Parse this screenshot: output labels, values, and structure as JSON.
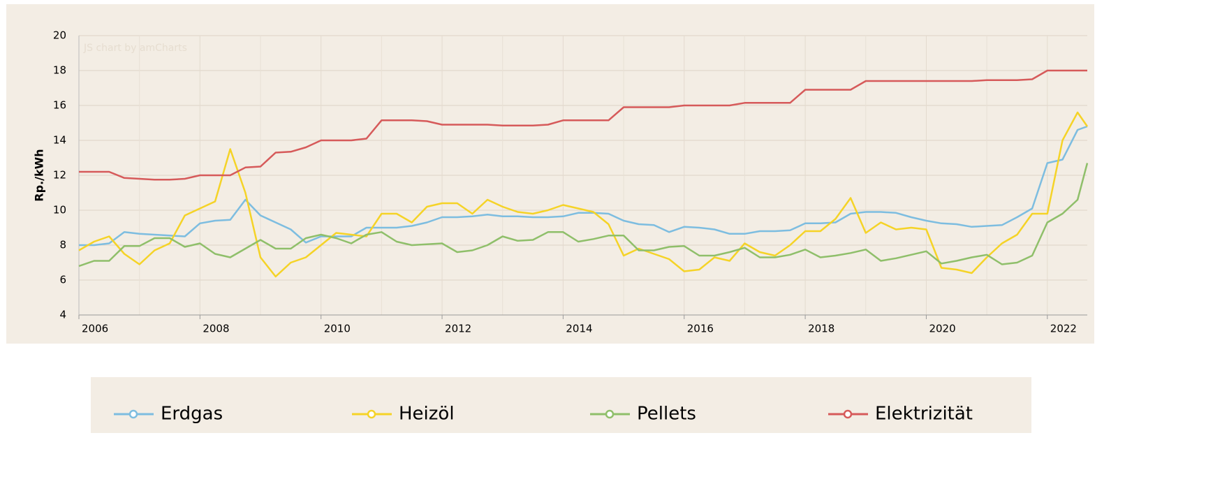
{
  "chart_data": {
    "type": "line",
    "watermark": "JS chart by amCharts",
    "y_label": "Rp./kWh",
    "x": [
      2006,
      2006.25,
      2006.5,
      2006.75,
      2007,
      2007.25,
      2007.5,
      2007.75,
      2008,
      2008.25,
      2008.5,
      2008.75,
      2009,
      2009.25,
      2009.5,
      2009.75,
      2010,
      2010.25,
      2010.5,
      2010.75,
      2011,
      2011.25,
      2011.5,
      2011.75,
      2012,
      2012.25,
      2012.5,
      2012.75,
      2013,
      2013.25,
      2013.5,
      2013.75,
      2014,
      2014.25,
      2014.5,
      2014.75,
      2015,
      2015.25,
      2015.5,
      2015.75,
      2016,
      2016.25,
      2016.5,
      2016.75,
      2017,
      2017.25,
      2017.5,
      2017.75,
      2018,
      2018.25,
      2018.5,
      2018.75,
      2019,
      2019.25,
      2019.5,
      2019.75,
      2020,
      2020.25,
      2020.5,
      2020.75,
      2021,
      2021.25,
      2021.5,
      2021.75,
      2022,
      2022.25,
      2022.5,
      2022.66
    ],
    "series": [
      {
        "name": "Erdgas",
        "color": "#7dbde0",
        "values": [
          8.0,
          8.0,
          8.1,
          8.75,
          8.65,
          8.6,
          8.55,
          8.5,
          9.25,
          9.4,
          9.45,
          10.6,
          9.7,
          9.3,
          8.9,
          8.15,
          8.5,
          8.5,
          8.5,
          9.0,
          9.0,
          9.0,
          9.1,
          9.3,
          9.6,
          9.6,
          9.65,
          9.75,
          9.65,
          9.65,
          9.6,
          9.6,
          9.65,
          9.85,
          9.85,
          9.8,
          9.4,
          9.2,
          9.15,
          8.75,
          9.05,
          9.0,
          8.9,
          8.65,
          8.65,
          8.8,
          8.8,
          8.85,
          9.25,
          9.25,
          9.3,
          9.8,
          9.9,
          9.9,
          9.85,
          9.6,
          9.4,
          9.25,
          9.2,
          9.05,
          9.1,
          9.15,
          9.6,
          10.1,
          12.7,
          12.9,
          14.6,
          14.8
        ]
      },
      {
        "name": "Heizöl",
        "color": "#f5d327",
        "values": [
          7.7,
          8.2,
          8.5,
          7.5,
          6.9,
          7.7,
          8.1,
          9.7,
          10.1,
          10.5,
          13.5,
          11.0,
          7.3,
          6.2,
          7.0,
          7.3,
          8.0,
          8.7,
          8.6,
          8.5,
          9.8,
          9.8,
          9.3,
          10.2,
          10.4,
          10.4,
          9.8,
          10.6,
          10.2,
          9.9,
          9.8,
          10.0,
          10.3,
          10.1,
          9.9,
          9.2,
          7.4,
          7.8,
          7.5,
          7.2,
          6.5,
          6.6,
          7.3,
          7.1,
          8.1,
          7.6,
          7.4,
          8.0,
          8.8,
          8.8,
          9.5,
          10.7,
          8.7,
          9.3,
          8.9,
          9.0,
          8.9,
          6.7,
          6.6,
          6.4,
          7.3,
          8.1,
          8.6,
          9.8,
          9.8,
          14.0,
          15.6,
          14.8
        ]
      },
      {
        "name": "Pellets",
        "color": "#8fbf6a",
        "values": [
          6.8,
          7.1,
          7.1,
          7.95,
          7.95,
          8.4,
          8.4,
          7.9,
          8.1,
          7.5,
          7.3,
          7.8,
          8.3,
          7.8,
          7.8,
          8.4,
          8.6,
          8.4,
          8.1,
          8.6,
          8.75,
          8.2,
          8.0,
          8.05,
          8.1,
          7.6,
          7.7,
          8.0,
          8.5,
          8.25,
          8.3,
          8.75,
          8.75,
          8.2,
          8.35,
          8.55,
          8.55,
          7.7,
          7.7,
          7.9,
          7.95,
          7.4,
          7.4,
          7.6,
          7.85,
          7.3,
          7.3,
          7.45,
          7.75,
          7.3,
          7.4,
          7.55,
          7.75,
          7.1,
          7.25,
          7.45,
          7.65,
          6.95,
          7.1,
          7.3,
          7.45,
          6.9,
          7.0,
          7.4,
          9.3,
          9.8,
          10.6,
          12.7
        ]
      },
      {
        "name": "Elektrizität",
        "color": "#d65a5a",
        "values": [
          12.2,
          12.2,
          12.2,
          11.85,
          11.8,
          11.75,
          11.75,
          11.8,
          12.0,
          12.0,
          12.0,
          12.45,
          12.5,
          13.3,
          13.35,
          13.6,
          14.0,
          14.0,
          14.0,
          14.1,
          15.15,
          15.15,
          15.15,
          15.1,
          14.9,
          14.9,
          14.9,
          14.9,
          14.85,
          14.85,
          14.85,
          14.9,
          15.15,
          15.15,
          15.15,
          15.15,
          15.9,
          15.9,
          15.9,
          15.9,
          16.0,
          16.0,
          16.0,
          16.0,
          16.15,
          16.15,
          16.15,
          16.15,
          16.9,
          16.9,
          16.9,
          16.9,
          17.4,
          17.4,
          17.4,
          17.4,
          17.4,
          17.4,
          17.4,
          17.4,
          17.45,
          17.45,
          17.45,
          17.5,
          18.0,
          18.0,
          18.0,
          18.0
        ]
      }
    ],
    "xlim": [
      2006,
      2022.66
    ],
    "xticks": [
      2006,
      2008,
      2010,
      2012,
      2014,
      2016,
      2018,
      2020,
      2022
    ],
    "ylim": [
      4,
      20
    ],
    "yticks": [
      4,
      6,
      8,
      10,
      12,
      14,
      16,
      18,
      20
    ],
    "grid": true
  }
}
